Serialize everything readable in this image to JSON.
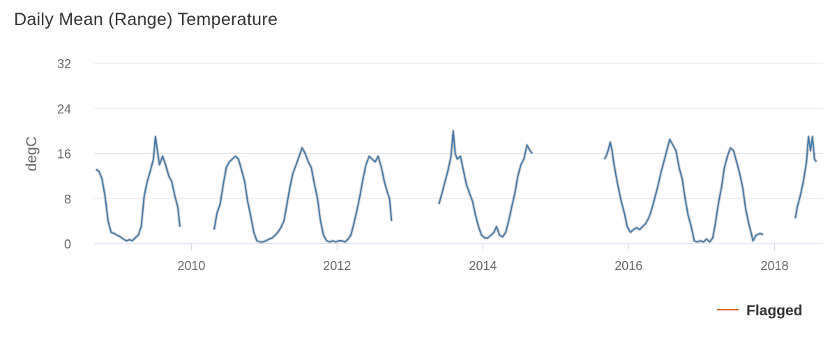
{
  "chart_data": {
    "type": "line",
    "title": "Daily Mean (Range) Temperature",
    "xlabel": "",
    "ylabel": "degC",
    "xlim": [
      "2008-09-01",
      "2018-09-01"
    ],
    "ylim": [
      0,
      32
    ],
    "y_ticks": [
      "0",
      "8",
      "16",
      "24",
      "32"
    ],
    "x_ticks": [
      "2010",
      "2012",
      "2014",
      "2016",
      "2018"
    ],
    "grid": true,
    "legend_position": "bottom-right",
    "series": [
      {
        "name": "",
        "style": "line",
        "color": "#4679A8",
        "segments": [
          [
            [
              "2008-09-10",
              13.2
            ],
            [
              "2008-09-25",
              12.8
            ],
            [
              "2008-10-10",
              11.5
            ],
            [
              "2008-10-25",
              8.5
            ],
            [
              "2008-11-10",
              4.0
            ],
            [
              "2008-11-25",
              2.0
            ],
            [
              "2008-12-10",
              1.8
            ],
            [
              "2008-12-25",
              1.5
            ],
            [
              "2009-01-10",
              1.2
            ],
            [
              "2009-01-25",
              0.8
            ],
            [
              "2009-02-10",
              0.5
            ],
            [
              "2009-02-25",
              0.7
            ],
            [
              "2009-03-10",
              0.5
            ],
            [
              "2009-03-25",
              1.0
            ],
            [
              "2009-04-10",
              1.5
            ],
            [
              "2009-04-25",
              3.0
            ],
            [
              "2009-05-10",
              8.5
            ],
            [
              "2009-05-25",
              11.0
            ],
            [
              "2009-06-10",
              13.0
            ],
            [
              "2009-06-25",
              15.0
            ],
            [
              "2009-07-05",
              19.0
            ],
            [
              "2009-07-15",
              16.5
            ],
            [
              "2009-07-25",
              14.0
            ],
            [
              "2009-08-10",
              15.5
            ],
            [
              "2009-08-25",
              14.0
            ],
            [
              "2009-09-10",
              12.0
            ],
            [
              "2009-09-25",
              11.0
            ],
            [
              "2009-10-10",
              8.5
            ],
            [
              "2009-10-25",
              6.5
            ],
            [
              "2009-11-05",
              3.0
            ]
          ],
          [
            [
              "2010-04-25",
              2.5
            ],
            [
              "2010-05-10",
              5.5
            ],
            [
              "2010-05-25",
              7.0
            ],
            [
              "2010-06-10",
              10.5
            ],
            [
              "2010-06-25",
              13.5
            ],
            [
              "2010-07-10",
              14.5
            ],
            [
              "2010-07-25",
              15.0
            ],
            [
              "2010-08-10",
              15.5
            ],
            [
              "2010-08-25",
              15.0
            ],
            [
              "2010-09-10",
              13.0
            ],
            [
              "2010-09-25",
              11.0
            ],
            [
              "2010-10-10",
              7.5
            ],
            [
              "2010-10-25",
              5.0
            ],
            [
              "2010-11-10",
              2.0
            ],
            [
              "2010-11-25",
              0.5
            ],
            [
              "2010-12-10",
              0.3
            ],
            [
              "2010-12-25",
              0.3
            ],
            [
              "2011-01-10",
              0.5
            ],
            [
              "2011-01-25",
              0.8
            ],
            [
              "2011-02-10",
              1.0
            ],
            [
              "2011-02-25",
              1.5
            ],
            [
              "2011-03-10",
              2.0
            ],
            [
              "2011-03-25",
              2.8
            ],
            [
              "2011-04-10",
              4.0
            ],
            [
              "2011-04-25",
              7.0
            ],
            [
              "2011-05-10",
              10.0
            ],
            [
              "2011-05-25",
              12.5
            ],
            [
              "2011-06-10",
              14.0
            ],
            [
              "2011-06-25",
              15.5
            ],
            [
              "2011-07-10",
              17.0
            ],
            [
              "2011-07-25",
              16.0
            ],
            [
              "2011-08-10",
              14.5
            ],
            [
              "2011-08-25",
              13.5
            ],
            [
              "2011-09-10",
              10.5
            ],
            [
              "2011-09-25",
              8.0
            ],
            [
              "2011-10-10",
              4.0
            ],
            [
              "2011-10-25",
              1.5
            ],
            [
              "2011-11-10",
              0.5
            ],
            [
              "2011-11-25",
              0.3
            ],
            [
              "2011-12-10",
              0.5
            ],
            [
              "2011-12-25",
              0.3
            ],
            [
              "2012-01-10",
              0.5
            ],
            [
              "2012-01-25",
              0.5
            ],
            [
              "2012-02-10",
              0.3
            ],
            [
              "2012-02-25",
              0.8
            ],
            [
              "2012-03-10",
              1.5
            ],
            [
              "2012-03-25",
              3.5
            ],
            [
              "2012-04-10",
              6.0
            ],
            [
              "2012-04-25",
              8.5
            ],
            [
              "2012-05-10",
              11.5
            ],
            [
              "2012-05-25",
              14.0
            ],
            [
              "2012-06-10",
              15.5
            ],
            [
              "2012-06-25",
              15.0
            ],
            [
              "2012-07-10",
              14.5
            ],
            [
              "2012-07-25",
              15.5
            ],
            [
              "2012-08-10",
              13.5
            ],
            [
              "2012-08-25",
              11.0
            ],
            [
              "2012-09-10",
              9.0
            ],
            [
              "2012-09-20",
              8.0
            ],
            [
              "2012-09-30",
              4.0
            ]
          ],
          [
            [
              "2013-05-25",
              7.0
            ],
            [
              "2013-06-10",
              9.0
            ],
            [
              "2013-06-25",
              11.0
            ],
            [
              "2013-07-10",
              13.0
            ],
            [
              "2013-07-25",
              15.5
            ],
            [
              "2013-08-05",
              20.0
            ],
            [
              "2013-08-15",
              16.0
            ],
            [
              "2013-08-25",
              15.0
            ],
            [
              "2013-09-10",
              15.5
            ],
            [
              "2013-09-25",
              13.0
            ],
            [
              "2013-10-10",
              10.5
            ],
            [
              "2013-10-25",
              9.0
            ],
            [
              "2013-11-10",
              7.5
            ],
            [
              "2013-11-25",
              5.0
            ],
            [
              "2013-12-10",
              3.0
            ],
            [
              "2013-12-25",
              1.5
            ],
            [
              "2014-01-10",
              1.0
            ],
            [
              "2014-01-25",
              1.0
            ],
            [
              "2014-02-10",
              1.5
            ],
            [
              "2014-02-25",
              2.0
            ],
            [
              "2014-03-10",
              3.0
            ],
            [
              "2014-03-25",
              1.5
            ],
            [
              "2014-04-10",
              1.2
            ],
            [
              "2014-04-25",
              2.0
            ],
            [
              "2014-05-10",
              4.0
            ],
            [
              "2014-05-25",
              6.5
            ],
            [
              "2014-06-10",
              9.0
            ],
            [
              "2014-06-25",
              12.0
            ],
            [
              "2014-07-10",
              14.0
            ],
            [
              "2014-07-25",
              15.0
            ],
            [
              "2014-08-10",
              17.5
            ],
            [
              "2014-08-25",
              16.5
            ],
            [
              "2014-09-05",
              16.0
            ]
          ],
          [
            [
              "2015-09-01",
              15.0
            ],
            [
              "2015-09-10",
              15.5
            ],
            [
              "2015-09-20",
              16.5
            ],
            [
              "2015-10-01",
              18.0
            ],
            [
              "2015-10-10",
              16.5
            ],
            [
              "2015-10-20",
              14.0
            ],
            [
              "2015-10-30",
              12.0
            ],
            [
              "2015-11-10",
              10.0
            ],
            [
              "2015-11-25",
              7.5
            ],
            [
              "2015-12-10",
              5.5
            ],
            [
              "2015-12-25",
              3.0
            ],
            [
              "2016-01-10",
              2.0
            ],
            [
              "2016-01-25",
              2.5
            ],
            [
              "2016-02-10",
              2.8
            ],
            [
              "2016-02-25",
              2.5
            ],
            [
              "2016-03-10",
              3.0
            ],
            [
              "2016-03-25",
              3.5
            ],
            [
              "2016-04-10",
              4.5
            ],
            [
              "2016-04-25",
              6.0
            ],
            [
              "2016-05-10",
              8.0
            ],
            [
              "2016-05-25",
              10.0
            ],
            [
              "2016-06-10",
              12.5
            ],
            [
              "2016-06-25",
              14.5
            ],
            [
              "2016-07-10",
              16.5
            ],
            [
              "2016-07-25",
              18.5
            ],
            [
              "2016-08-10",
              17.5
            ],
            [
              "2016-08-25",
              16.5
            ],
            [
              "2016-09-10",
              13.5
            ],
            [
              "2016-09-25",
              11.5
            ],
            [
              "2016-10-10",
              8.0
            ],
            [
              "2016-10-25",
              5.0
            ],
            [
              "2016-11-10",
              3.0
            ],
            [
              "2016-11-25",
              0.5
            ],
            [
              "2016-12-10",
              0.3
            ],
            [
              "2016-12-25",
              0.5
            ],
            [
              "2017-01-10",
              0.3
            ],
            [
              "2017-01-25",
              0.8
            ],
            [
              "2017-02-10",
              0.3
            ],
            [
              "2017-02-25",
              1.0
            ],
            [
              "2017-03-10",
              3.5
            ],
            [
              "2017-03-25",
              7.0
            ],
            [
              "2017-04-10",
              10.0
            ],
            [
              "2017-04-25",
              13.5
            ],
            [
              "2017-05-10",
              15.5
            ],
            [
              "2017-05-25",
              17.0
            ],
            [
              "2017-06-10",
              16.5
            ],
            [
              "2017-06-25",
              14.5
            ],
            [
              "2017-07-10",
              12.5
            ],
            [
              "2017-07-25",
              10.0
            ],
            [
              "2017-08-10",
              6.0
            ],
            [
              "2017-08-25",
              3.5
            ],
            [
              "2017-09-05",
              2.0
            ],
            [
              "2017-09-15",
              0.5
            ],
            [
              "2017-10-01",
              1.5
            ],
            [
              "2017-10-20",
              1.8
            ],
            [
              "2017-11-05",
              1.6
            ]
          ],
          [
            [
              "2018-04-15",
              4.5
            ],
            [
              "2018-04-25",
              6.5
            ],
            [
              "2018-05-10",
              8.5
            ],
            [
              "2018-05-25",
              11.0
            ],
            [
              "2018-06-10",
              14.5
            ],
            [
              "2018-06-20",
              19.0
            ],
            [
              "2018-06-30",
              16.5
            ],
            [
              "2018-07-10",
              19.0
            ],
            [
              "2018-07-20",
              15.0
            ],
            [
              "2018-07-30",
              14.5
            ]
          ]
        ]
      },
      {
        "name": "Flagged",
        "style": "line",
        "color": "#E0632F",
        "segments": []
      }
    ]
  }
}
